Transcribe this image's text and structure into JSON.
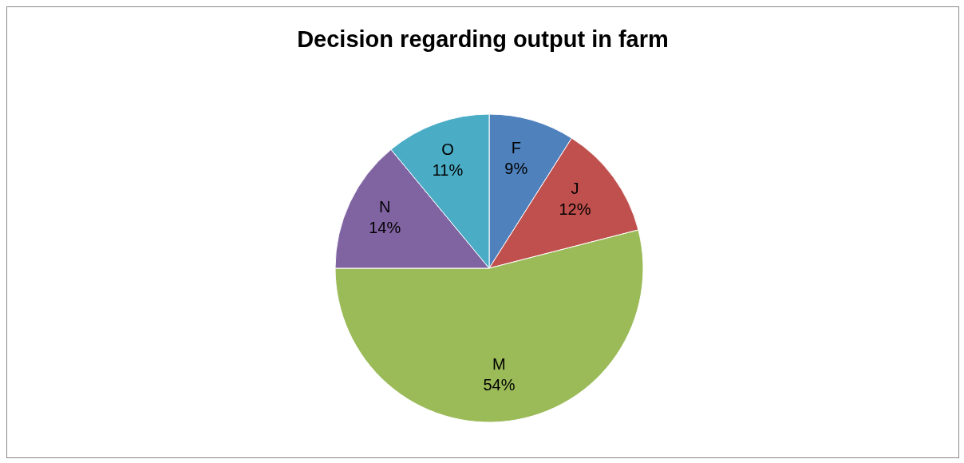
{
  "chart_data": {
    "type": "pie",
    "title": "Decision regarding output in farm",
    "categories": [
      "F",
      "J",
      "M",
      "N",
      "O"
    ],
    "values": [
      9,
      12,
      54,
      14,
      11
    ],
    "value_labels": [
      "9%",
      "12%",
      "54%",
      "14%",
      "11%"
    ],
    "colors": [
      "#4f81bd",
      "#c0504d",
      "#9bbb59",
      "#8064a2",
      "#4bacc6"
    ],
    "legend": false
  }
}
